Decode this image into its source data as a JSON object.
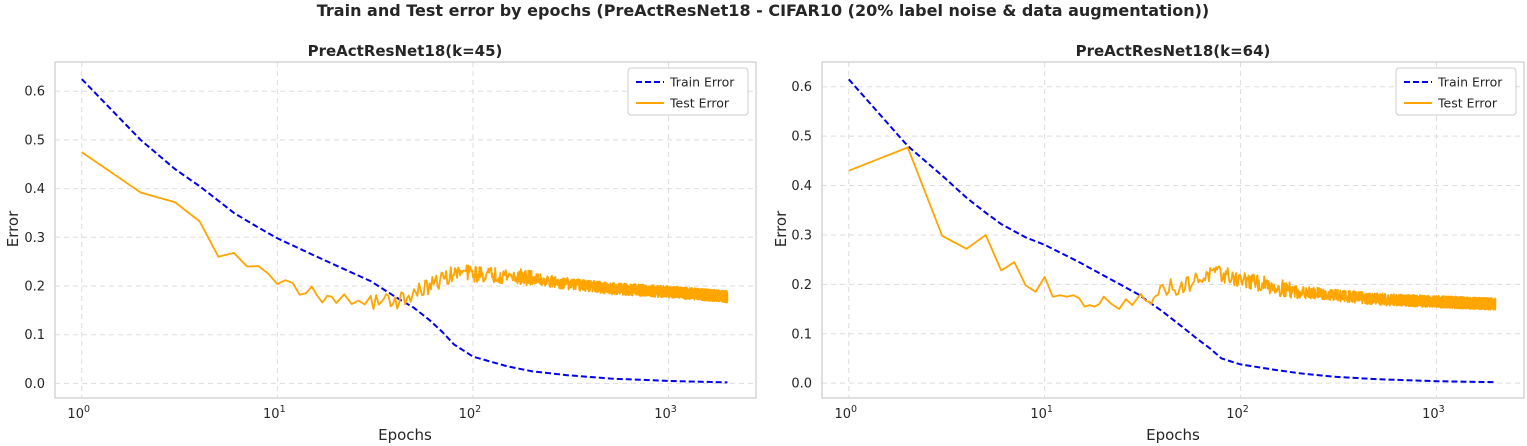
{
  "figure": {
    "title": "Train and Test error by epochs (PreActResNet18 - CIFAR10 (20% label noise & data augmentation))"
  },
  "colors": {
    "train": "#0000ee",
    "test": "#ffa500",
    "grid": "#dddddd",
    "frame": "#cccccc"
  },
  "chart_data": [
    {
      "type": "line",
      "title": "PreActResNet18(k=45)",
      "xlabel": "Epochs",
      "ylabel": "Error",
      "xscale": "log",
      "xlim": [
        0.73,
        2800
      ],
      "ylim": [
        -0.03,
        0.66
      ],
      "xticks": [
        {
          "value": 1,
          "base": "10",
          "exp": "0"
        },
        {
          "value": 10,
          "base": "10",
          "exp": "1"
        },
        {
          "value": 100,
          "base": "10",
          "exp": "2"
        },
        {
          "value": 1000,
          "base": "10",
          "exp": "3"
        }
      ],
      "yticks": [
        "0.0",
        "0.1",
        "0.2",
        "0.3",
        "0.4",
        "0.5",
        "0.6"
      ],
      "grid": true,
      "legend_position": "upper right",
      "series": [
        {
          "name": "Train Error",
          "style": "dashed",
          "color": "#0000ee",
          "points": [
            [
              1,
              0.625
            ],
            [
              2,
              0.5
            ],
            [
              3,
              0.44
            ],
            [
              4,
              0.405
            ],
            [
              5,
              0.375
            ],
            [
              6,
              0.35
            ],
            [
              8,
              0.32
            ],
            [
              10,
              0.298
            ],
            [
              15,
              0.265
            ],
            [
              20,
              0.242
            ],
            [
              30,
              0.21
            ],
            [
              40,
              0.178
            ],
            [
              50,
              0.155
            ],
            [
              60,
              0.13
            ],
            [
              70,
              0.105
            ],
            [
              80,
              0.08
            ],
            [
              100,
              0.055
            ],
            [
              150,
              0.035
            ],
            [
              200,
              0.025
            ],
            [
              300,
              0.017
            ],
            [
              500,
              0.01
            ],
            [
              1000,
              0.005
            ],
            [
              2000,
              0.002
            ]
          ]
        },
        {
          "name": "Test Error",
          "style": "solid",
          "color": "#ffa500",
          "points": [
            [
              1,
              0.475
            ],
            [
              2,
              0.392
            ],
            [
              3,
              0.372
            ],
            [
              4,
              0.333
            ],
            [
              5,
              0.26
            ],
            [
              6,
              0.268
            ],
            [
              7,
              0.24
            ],
            [
              8,
              0.241
            ],
            [
              9,
              0.225
            ],
            [
              10,
              0.204
            ],
            [
              11,
              0.212
            ],
            [
              12,
              0.206
            ],
            [
              13,
              0.182
            ],
            [
              14,
              0.185
            ],
            [
              15,
              0.199
            ],
            [
              16,
              0.18
            ],
            [
              17,
              0.166
            ],
            [
              18,
              0.18
            ],
            [
              19,
              0.178
            ],
            [
              20,
              0.165
            ],
            [
              22,
              0.183
            ],
            [
              24,
              0.163
            ],
            [
              26,
              0.17
            ],
            [
              28,
              0.162
            ],
            [
              30,
              0.172
            ],
            [
              33,
              0.162
            ],
            [
              36,
              0.18
            ],
            [
              40,
              0.168
            ],
            [
              45,
              0.175
            ],
            [
              50,
              0.185
            ],
            [
              60,
              0.2
            ],
            [
              70,
              0.215
            ],
            [
              80,
              0.225
            ],
            [
              90,
              0.228
            ],
            [
              100,
              0.225
            ],
            [
              150,
              0.222
            ],
            [
              200,
              0.215
            ],
            [
              300,
              0.205
            ],
            [
              500,
              0.195
            ],
            [
              1000,
              0.188
            ],
            [
              2000,
              0.178
            ]
          ],
          "jitter_from_epoch": 30,
          "jitter_amplitude": 0.012
        }
      ]
    },
    {
      "type": "line",
      "title": "PreActResNet18(k=64)",
      "xlabel": "Epochs",
      "ylabel": "Error",
      "xscale": "log",
      "xlim": [
        0.73,
        2800
      ],
      "ylim": [
        -0.03,
        0.65
      ],
      "xticks": [
        {
          "value": 1,
          "base": "10",
          "exp": "0"
        },
        {
          "value": 10,
          "base": "10",
          "exp": "1"
        },
        {
          "value": 100,
          "base": "10",
          "exp": "2"
        },
        {
          "value": 1000,
          "base": "10",
          "exp": "3"
        }
      ],
      "yticks": [
        "0.0",
        "0.1",
        "0.2",
        "0.3",
        "0.4",
        "0.5",
        "0.6"
      ],
      "grid": true,
      "legend_position": "upper right",
      "series": [
        {
          "name": "Train Error",
          "style": "dashed",
          "color": "#0000ee",
          "points": [
            [
              1,
              0.615
            ],
            [
              2,
              0.48
            ],
            [
              3,
              0.42
            ],
            [
              4,
              0.375
            ],
            [
              5,
              0.345
            ],
            [
              6,
              0.322
            ],
            [
              8,
              0.295
            ],
            [
              10,
              0.28
            ],
            [
              15,
              0.245
            ],
            [
              20,
              0.218
            ],
            [
              30,
              0.18
            ],
            [
              40,
              0.145
            ],
            [
              50,
              0.115
            ],
            [
              60,
              0.09
            ],
            [
              70,
              0.07
            ],
            [
              80,
              0.05
            ],
            [
              100,
              0.038
            ],
            [
              150,
              0.027
            ],
            [
              200,
              0.02
            ],
            [
              300,
              0.013
            ],
            [
              500,
              0.008
            ],
            [
              1000,
              0.004
            ],
            [
              2000,
              0.002
            ]
          ]
        },
        {
          "name": "Test Error",
          "style": "solid",
          "color": "#ffa500",
          "points": [
            [
              1,
              0.43
            ],
            [
              2,
              0.477
            ],
            [
              3,
              0.298
            ],
            [
              4,
              0.272
            ],
            [
              5,
              0.3
            ],
            [
              6,
              0.228
            ],
            [
              7,
              0.245
            ],
            [
              8,
              0.198
            ],
            [
              9,
              0.185
            ],
            [
              10,
              0.215
            ],
            [
              11,
              0.175
            ],
            [
              12,
              0.178
            ],
            [
              13,
              0.175
            ],
            [
              14,
              0.178
            ],
            [
              15,
              0.172
            ],
            [
              16,
              0.155
            ],
            [
              17,
              0.158
            ],
            [
              18,
              0.155
            ],
            [
              19,
              0.16
            ],
            [
              20,
              0.175
            ],
            [
              22,
              0.16
            ],
            [
              24,
              0.15
            ],
            [
              26,
              0.17
            ],
            [
              28,
              0.158
            ],
            [
              30,
              0.165
            ],
            [
              33,
              0.18
            ],
            [
              36,
              0.175
            ],
            [
              40,
              0.19
            ],
            [
              45,
              0.195
            ],
            [
              50,
              0.195
            ],
            [
              60,
              0.21
            ],
            [
              70,
              0.22
            ],
            [
              80,
              0.22
            ],
            [
              90,
              0.215
            ],
            [
              100,
              0.21
            ],
            [
              150,
              0.195
            ],
            [
              200,
              0.185
            ],
            [
              300,
              0.178
            ],
            [
              500,
              0.17
            ],
            [
              1000,
              0.165
            ],
            [
              2000,
              0.16
            ]
          ],
          "jitter_from_epoch": 30,
          "jitter_amplitude": 0.012
        }
      ]
    }
  ]
}
